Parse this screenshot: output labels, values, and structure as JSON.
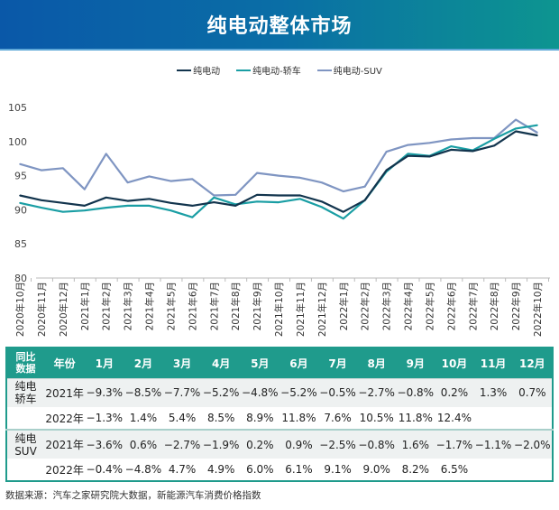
{
  "title": "纯电动整体市场",
  "chart_data": {
    "type": "line",
    "title": "",
    "xlabel": "",
    "ylabel": "",
    "ylim": [
      80,
      105
    ],
    "yticks": [
      80,
      85,
      90,
      95,
      100,
      105
    ],
    "grid": false,
    "legend_position": "top",
    "categories": [
      "2020年10月",
      "2020年11月",
      "2020年12月",
      "2021年1月",
      "2021年2月",
      "2021年3月",
      "2021年4月",
      "2021年5月",
      "2021年6月",
      "2021年7月",
      "2021年8月",
      "2021年9月",
      "2021年10月",
      "2021年11月",
      "2021年12月",
      "2022年1月",
      "2022年2月",
      "2022年3月",
      "2022年4月",
      "2022年5月",
      "2022年6月",
      "2022年7月",
      "2022年8月",
      "2022年9月",
      "2022年10月"
    ],
    "series": [
      {
        "name": "纯电动",
        "color": "#12344d",
        "values": [
          92.1,
          91.4,
          91.0,
          90.6,
          91.8,
          91.3,
          91.6,
          91.0,
          90.6,
          91.1,
          90.6,
          92.2,
          92.1,
          92.1,
          91.2,
          89.7,
          91.4,
          95.8,
          97.9,
          97.8,
          98.8,
          98.6,
          99.4,
          101.5,
          100.9
        ]
      },
      {
        "name": "纯电动-轿车",
        "color": "#1a9ea4",
        "values": [
          91.0,
          90.3,
          89.7,
          89.9,
          90.3,
          90.6,
          90.6,
          89.9,
          88.9,
          91.8,
          90.8,
          91.2,
          91.1,
          91.6,
          90.4,
          88.7,
          91.4,
          95.6,
          98.2,
          97.9,
          99.3,
          98.7,
          100.4,
          101.9,
          102.4
        ]
      },
      {
        "name": "纯电动-SUV",
        "color": "#7f95c2",
        "values": [
          96.7,
          95.8,
          96.1,
          93.0,
          98.2,
          94.0,
          94.9,
          94.2,
          94.5,
          92.1,
          92.2,
          95.4,
          95.0,
          94.7,
          94.0,
          92.7,
          93.4,
          98.5,
          99.5,
          99.8,
          100.3,
          100.5,
          100.5,
          103.2,
          101.3
        ]
      }
    ]
  },
  "table": {
    "header_first": [
      "同比",
      "数据"
    ],
    "header_year": "年份",
    "months": [
      "1月",
      "2月",
      "3月",
      "4月",
      "5月",
      "6月",
      "7月",
      "8月",
      "9月",
      "10月",
      "11月",
      "12月"
    ],
    "groups": [
      {
        "label": [
          "纯电",
          "轿车"
        ],
        "rows": [
          {
            "year": "2021年",
            "values": [
              "−9.3%",
              "−8.5%",
              "−7.7%",
              "−5.2%",
              "−4.8%",
              "−5.2%",
              "−0.5%",
              "−2.7%",
              "−0.8%",
              "0.2%",
              "1.3%",
              "0.7%"
            ]
          },
          {
            "year": "2022年",
            "values": [
              "−1.3%",
              "1.4%",
              "5.4%",
              "8.5%",
              "8.9%",
              "11.8%",
              "7.6%",
              "10.5%",
              "11.8%",
              "12.4%",
              "",
              ""
            ]
          }
        ]
      },
      {
        "label": [
          "纯电",
          "SUV"
        ],
        "rows": [
          {
            "year": "2021年",
            "values": [
              "−3.6%",
              "0.6%",
              "−2.7%",
              "−1.9%",
              "0.2%",
              "0.9%",
              "−2.5%",
              "−0.8%",
              "1.6%",
              "−1.7%",
              "−1.1%",
              "−2.0%"
            ]
          },
          {
            "year": "2022年",
            "values": [
              "−0.4%",
              "−4.8%",
              "4.7%",
              "4.9%",
              "6.0%",
              "6.1%",
              "9.1%",
              "9.0%",
              "8.2%",
              "6.5%",
              "",
              ""
            ]
          }
        ]
      }
    ]
  },
  "source": "数据来源：汽车之家研究院大数据，新能源汽车消费价格指数"
}
